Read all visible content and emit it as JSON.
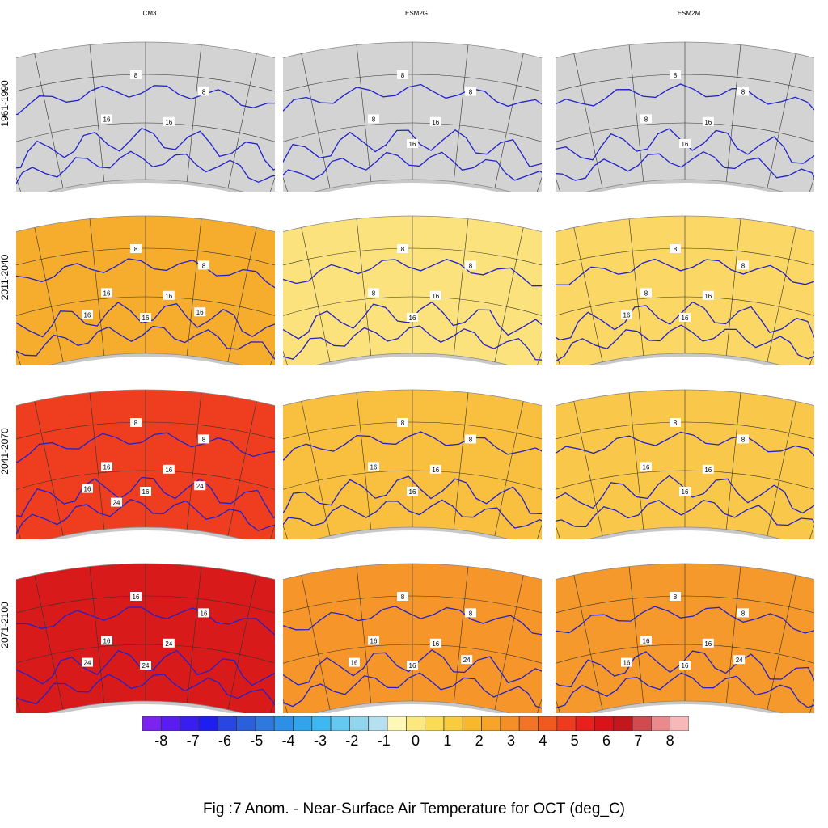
{
  "figure": {
    "caption": "Fig :7  Anom.  - Near-Surface Air Temperature for OCT (deg_C)",
    "columns": [
      "CM3",
      "ESM2G",
      "ESM2M"
    ],
    "rows": [
      "1961-1990",
      "2011-2040",
      "2041-2070",
      "2071-2100"
    ]
  },
  "panels": [
    {
      "row": 0,
      "col": 0,
      "fill": "#d3d3d3",
      "labels": [
        "8",
        "8",
        "16",
        "16"
      ]
    },
    {
      "row": 0,
      "col": 1,
      "fill": "#d3d3d3",
      "labels": [
        "8",
        "8",
        "8",
        "16",
        "16"
      ]
    },
    {
      "row": 0,
      "col": 2,
      "fill": "#d3d3d3",
      "labels": [
        "8",
        "8",
        "8",
        "16",
        "16"
      ]
    },
    {
      "row": 1,
      "col": 0,
      "fill": "#f6ad2e",
      "labels": [
        "8",
        "8",
        "16",
        "16",
        "16",
        "16",
        "16"
      ]
    },
    {
      "row": 1,
      "col": 1,
      "fill": "#fbe27c",
      "labels": [
        "8",
        "8",
        "8",
        "16",
        "16"
      ]
    },
    {
      "row": 1,
      "col": 2,
      "fill": "#fbd765",
      "labels": [
        "8",
        "8",
        "8",
        "16",
        "16",
        "16"
      ]
    },
    {
      "row": 2,
      "col": 0,
      "fill": "#ef3e1f",
      "labels": [
        "8",
        "8",
        "16",
        "16",
        "16",
        "16",
        "24",
        "24"
      ]
    },
    {
      "row": 2,
      "col": 1,
      "fill": "#f9bf3e",
      "labels": [
        "8",
        "8",
        "16",
        "16",
        "16"
      ]
    },
    {
      "row": 2,
      "col": 2,
      "fill": "#f9c84a",
      "labels": [
        "8",
        "8",
        "16",
        "16",
        "16"
      ]
    },
    {
      "row": 3,
      "col": 0,
      "fill": "#d91a1a",
      "labels": [
        "16",
        "16",
        "16",
        "24",
        "24",
        "24"
      ]
    },
    {
      "row": 3,
      "col": 1,
      "fill": "#f5952a",
      "labels": [
        "8",
        "8",
        "16",
        "16",
        "16",
        "16",
        "24"
      ]
    },
    {
      "row": 3,
      "col": 2,
      "fill": "#f5992c",
      "labels": [
        "8",
        "8",
        "16",
        "16",
        "16",
        "16",
        "24"
      ]
    }
  ],
  "colorbar": {
    "colors": [
      "#7b24f0",
      "#5a1df0",
      "#3a1ef0",
      "#1e1ef0",
      "#2a46e0",
      "#2c5fdc",
      "#2f78e0",
      "#2f8fe6",
      "#30a5ec",
      "#3db8f0",
      "#66c8f0",
      "#92d6ee",
      "#b6e0f0",
      "#fdf8b8",
      "#fbe97f",
      "#fadb57",
      "#f8cb40",
      "#f7b82e",
      "#f6a42a",
      "#f48e26",
      "#f27424",
      "#ef5a20",
      "#ed3b1e",
      "#e8211c",
      "#d8141a",
      "#c2181c",
      "#d04a4e",
      "#e98a8c",
      "#f8b8b8"
    ],
    "tick_labels": [
      "-8",
      "-7",
      "-6",
      "-5",
      "-4",
      "-3",
      "-2",
      "-1",
      "0",
      "1",
      "2",
      "3",
      "4",
      "5",
      "6",
      "7",
      "8"
    ]
  }
}
